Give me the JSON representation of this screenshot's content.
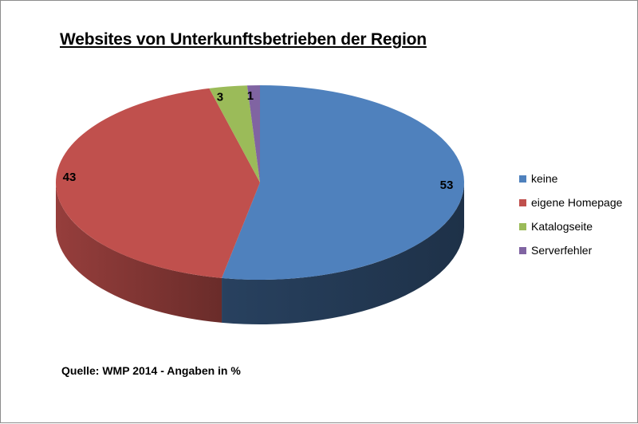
{
  "chart_data": {
    "type": "pie",
    "title": "Websites von Unterkunftsbetrieben der Region",
    "categories": [
      "keine",
      "eigene Homepage",
      "Katalogseite",
      "Serverfehler"
    ],
    "values": [
      53,
      43,
      3,
      1
    ],
    "colors": [
      "#4f81bd",
      "#c0504d",
      "#9bbb59",
      "#8064a2"
    ],
    "data_labels": [
      "53",
      "43",
      "3",
      "1"
    ],
    "legend_position": "right",
    "style": "3d"
  },
  "note": "Quelle: WMP 2014 - Angaben in %"
}
